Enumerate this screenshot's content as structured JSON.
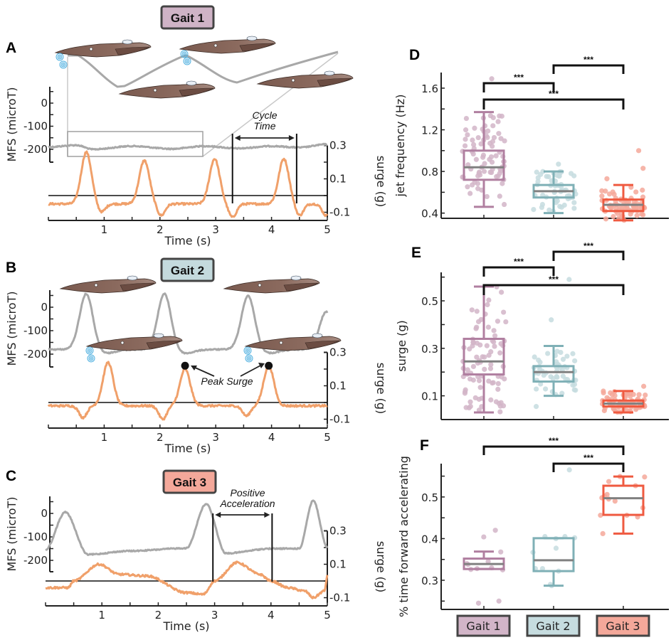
{
  "colors": {
    "gait1": "#b07fa0",
    "gait1_fill": "#d2b5c8",
    "gait2": "#7fb0b6",
    "gait2_fill": "#c6dcdf",
    "gait3": "#ef5a40",
    "gait3_fill": "#f4a89a",
    "mfs_trace": "#a8a8a8",
    "surge_trace": "#f0a06a",
    "median": "#808080",
    "axis": "#222222",
    "squid": "#6e5248",
    "water": "#4fb0e0"
  },
  "chart_data": [
    {
      "panel": "A",
      "type": "line",
      "title": "Gait 1",
      "xlabel": "Time (s)",
      "ylabel_left": "MFS (microT)",
      "ylabel_right": "surge (g)",
      "x_ticks": [
        "1",
        "2",
        "3",
        "4",
        "5"
      ],
      "xlim": [
        0,
        5
      ],
      "y_left_ticks": [
        "0",
        "-100",
        "-200"
      ],
      "y_left_range": [
        -250,
        70
      ],
      "y_right_ticks": [
        "0.3",
        "0.1",
        "-0.1"
      ],
      "y_right_range": [
        -0.13,
        0.3
      ],
      "annotation": "Cycle Time",
      "cycle_marker_times": [
        3.3,
        4.45
      ],
      "zoom_inset_window_s": [
        0.3,
        2.8
      ],
      "series": [
        {
          "name": "MFS",
          "axis": "left",
          "baseline": -190,
          "shape": "slow-oscillation",
          "keypoints": [
            [
              0,
              -190
            ],
            [
              0.5,
              -182
            ],
            [
              0.8,
              -200
            ],
            [
              1.5,
              -186
            ],
            [
              2.2,
              -198
            ],
            [
              2.8,
              -186
            ],
            [
              3.4,
              -196
            ],
            [
              4.0,
              -186
            ],
            [
              4.5,
              -192
            ],
            [
              5,
              -178
            ]
          ]
        },
        {
          "name": "surge",
          "axis": "right",
          "baseline": -0.05,
          "peaks": [
            {
              "t": 0.68,
              "v": 0.26
            },
            {
              "t": 1.72,
              "v": 0.21
            },
            {
              "t": 2.98,
              "v": 0.22
            },
            {
              "t": 4.22,
              "v": 0.22
            }
          ],
          "troughs": [
            {
              "t": 0.95,
              "v": -0.1
            },
            {
              "t": 2.02,
              "v": -0.12
            },
            {
              "t": 3.3,
              "v": -0.13
            },
            {
              "t": 4.5,
              "v": -0.12
            },
            {
              "t": 4.98,
              "v": -0.12
            }
          ]
        }
      ]
    },
    {
      "panel": "B",
      "type": "line",
      "title": "Gait 2",
      "xlabel": "Time (s)",
      "ylabel_left": "MFS (microT)",
      "ylabel_right": "surge (g)",
      "x_ticks": [
        "1",
        "2",
        "3",
        "4",
        "5"
      ],
      "xlim": [
        0,
        5
      ],
      "y_left_ticks": [
        "0",
        "-100",
        "-200"
      ],
      "y_right_ticks": [
        "0.3",
        "0.1",
        "-0.1"
      ],
      "annotation": "Peak Surge",
      "peak_surge_markers": [
        {
          "t": 2.45,
          "v": 0.22
        },
        {
          "t": 3.95,
          "v": 0.22
        }
      ],
      "series": [
        {
          "name": "MFS",
          "axis": "left",
          "baseline": -180,
          "peaks": [
            {
              "t": 0.68,
              "v": 60
            },
            {
              "t": 2.08,
              "v": 60
            },
            {
              "t": 3.58,
              "v": 50
            },
            {
              "t": 4.98,
              "v": -20
            }
          ],
          "troughs": [
            {
              "t": 1.0,
              "v": -198
            },
            {
              "t": 2.42,
              "v": -198
            },
            {
              "t": 3.95,
              "v": -196
            }
          ]
        },
        {
          "name": "surge",
          "axis": "right",
          "baseline": -0.02,
          "peaks": [
            {
              "t": 1.07,
              "v": 0.24
            },
            {
              "t": 2.45,
              "v": 0.2
            },
            {
              "t": 3.95,
              "v": 0.22
            }
          ],
          "troughs": [
            {
              "t": 0.62,
              "v": -0.09
            },
            {
              "t": 2.05,
              "v": -0.1
            },
            {
              "t": 3.55,
              "v": -0.08
            }
          ]
        }
      ]
    },
    {
      "panel": "C",
      "type": "line",
      "title": "Gait 3",
      "xlabel": "Time (s)",
      "ylabel_left": "MFS (microT)",
      "ylabel_right": "surge (g)",
      "x_ticks": [
        "1",
        "2",
        "3",
        "4",
        "5"
      ],
      "xlim": [
        0,
        5
      ],
      "y_left_ticks": [
        "0",
        "-100",
        "-200"
      ],
      "y_right_ticks": [
        "0.3",
        "0.1",
        "-0.1"
      ],
      "annotation": "Positive Acceleration",
      "accel_marker_times": [
        2.97,
        4.02
      ],
      "series": [
        {
          "name": "MFS",
          "axis": "left",
          "keypoints": [
            [
              0,
              -155
            ],
            [
              0.35,
              5
            ],
            [
              0.75,
              -175
            ],
            [
              1.5,
              -160
            ],
            [
              2.5,
              -148
            ],
            [
              2.85,
              40
            ],
            [
              3.2,
              -170
            ],
            [
              4.0,
              -150
            ],
            [
              4.5,
              -150
            ],
            [
              4.75,
              55
            ],
            [
              5,
              -145
            ]
          ]
        },
        {
          "name": "surge",
          "axis": "right",
          "keypoints": [
            [
              0,
              -0.04
            ],
            [
              0.4,
              -0.04
            ],
            [
              0.5,
              0.0
            ],
            [
              0.95,
              0.1
            ],
            [
              1.3,
              0.04
            ],
            [
              1.8,
              0.03
            ],
            [
              2.5,
              -0.07
            ],
            [
              2.8,
              -0.08
            ],
            [
              3.0,
              0.0
            ],
            [
              3.4,
              0.11
            ],
            [
              3.8,
              0.04
            ],
            [
              4.0,
              0.0
            ],
            [
              4.3,
              -0.04
            ],
            [
              4.6,
              -0.06
            ],
            [
              4.75,
              -0.1
            ],
            [
              4.95,
              -0.06
            ],
            [
              5,
              0.03
            ]
          ]
        }
      ]
    },
    {
      "panel": "D",
      "type": "box",
      "ylabel": "jet frequency (Hz)",
      "categories": [
        "Gait 1",
        "Gait 2",
        "Gait 3"
      ],
      "y_ticks": [
        "1.6",
        "1.2",
        "0.8",
        "0.4"
      ],
      "ylim": [
        0.35,
        1.75
      ],
      "boxes": [
        {
          "q1": 0.72,
          "median": 0.84,
          "q3": 1.0,
          "whisker_low": 0.46,
          "whisker_high": 1.37,
          "outliers": [
            1.69
          ]
        },
        {
          "q1": 0.55,
          "median": 0.61,
          "q3": 0.67,
          "whisker_low": 0.4,
          "whisker_high": 0.8,
          "outliers": [
            0.87
          ]
        },
        {
          "q1": 0.42,
          "median": 0.48,
          "q3": 0.53,
          "whisker_low": 0.33,
          "whisker_high": 0.67,
          "outliers": [
            0.73,
            0.83,
            1.0
          ]
        }
      ],
      "significance": [
        {
          "pair": [
            1,
            2
          ],
          "label": "***"
        },
        {
          "pair": [
            2,
            3
          ],
          "label": "***"
        },
        {
          "pair": [
            1,
            3
          ],
          "label": "***"
        }
      ]
    },
    {
      "panel": "E",
      "type": "box",
      "ylabel": "surge (g)",
      "categories": [
        "Gait 1",
        "Gait 2",
        "Gait 3"
      ],
      "y_ticks": [
        "0.5",
        "0.3",
        "0.1"
      ],
      "ylim": [
        0.0,
        0.62
      ],
      "boxes": [
        {
          "q1": 0.19,
          "median": 0.245,
          "q3": 0.34,
          "whisker_low": 0.03,
          "whisker_high": 0.56,
          "outliers": []
        },
        {
          "q1": 0.16,
          "median": 0.2,
          "q3": 0.225,
          "whisker_low": 0.1,
          "whisker_high": 0.31,
          "outliers": [
            0.59,
            0.42,
            0.055
          ]
        },
        {
          "q1": 0.055,
          "median": 0.067,
          "q3": 0.08,
          "whisker_low": 0.03,
          "whisker_high": 0.12,
          "outliers": [
            0.14
          ]
        }
      ],
      "significance": [
        {
          "pair": [
            1,
            2
          ],
          "label": "***"
        },
        {
          "pair": [
            2,
            3
          ],
          "label": "***"
        },
        {
          "pair": [
            1,
            3
          ],
          "label": "***"
        }
      ]
    },
    {
      "panel": "F",
      "type": "box",
      "ylabel": "% time forward accelerating",
      "categories": [
        "Gait 1",
        "Gait 2",
        "Gait 3"
      ],
      "y_ticks": [
        "0.5",
        "0.4",
        "0.3"
      ],
      "ylim": [
        0.23,
        0.58
      ],
      "boxes": [
        {
          "q1": 0.327,
          "median": 0.339,
          "q3": 0.352,
          "whisker_low": 0.327,
          "whisker_high": 0.369,
          "outliers": [
            0.42,
            0.404,
            0.25,
            0.245
          ],
          "points": [
            0.328,
            0.34,
            0.325,
            0.368,
            0.338,
            0.345,
            0.326,
            0.33,
            0.42,
            0.404,
            0.25,
            0.245
          ]
        },
        {
          "q1": 0.322,
          "median": 0.348,
          "q3": 0.401,
          "whisker_low": 0.287,
          "whisker_high": 0.401,
          "outliers": [
            0.565
          ],
          "points": [
            0.4,
            0.405,
            0.405,
            0.402,
            0.367,
            0.377,
            0.328,
            0.322,
            0.29,
            0.287,
            0.328,
            0.565
          ]
        },
        {
          "q1": 0.457,
          "median": 0.497,
          "q3": 0.527,
          "whisker_low": 0.412,
          "whisker_high": 0.549,
          "outliers": [],
          "points": [
            0.527,
            0.537,
            0.548,
            0.549,
            0.506,
            0.474,
            0.498,
            0.502,
            0.49,
            0.452,
            0.456,
            0.456,
            0.495,
            0.412
          ]
        }
      ],
      "significance": [
        {
          "pair": [
            2,
            3
          ],
          "label": "***"
        },
        {
          "pair": [
            1,
            3
          ],
          "label": "***"
        }
      ]
    }
  ],
  "labels": {
    "panel_letters": [
      "A",
      "B",
      "C",
      "D",
      "E",
      "F"
    ],
    "gait_titles": [
      "Gait 1",
      "Gait 2",
      "Gait 3"
    ],
    "time_label": "Time (s)",
    "mfs_label": "MFS (microT)",
    "surge_label": "surge (g)",
    "cycle_time_line1": "Cycle",
    "cycle_time_line2": "Time",
    "peak_surge": "Peak Surge",
    "pos_acc_line1": "Positive",
    "pos_acc_line2": "Acceleration",
    "sig": "***",
    "x_ticks": [
      "1",
      "2",
      "3",
      "4",
      "5"
    ],
    "mfs_ticks": [
      "0",
      "-100",
      "-200"
    ],
    "surge_ticks": [
      "0.3",
      "0.1",
      "-0.1"
    ],
    "d_ylabel": "jet frequency (Hz)",
    "d_ticks": [
      "1.6",
      "1.2",
      "0.8",
      "0.4"
    ],
    "e_ylabel": "surge (g)",
    "e_ticks": [
      "0.5",
      "0.3",
      "0.1"
    ],
    "f_ylabel": "% time forward accelerating",
    "f_ticks": [
      "0.5",
      "0.4",
      "0.3"
    ],
    "categories": [
      "Gait 1",
      "Gait 2",
      "Gait 3"
    ]
  }
}
